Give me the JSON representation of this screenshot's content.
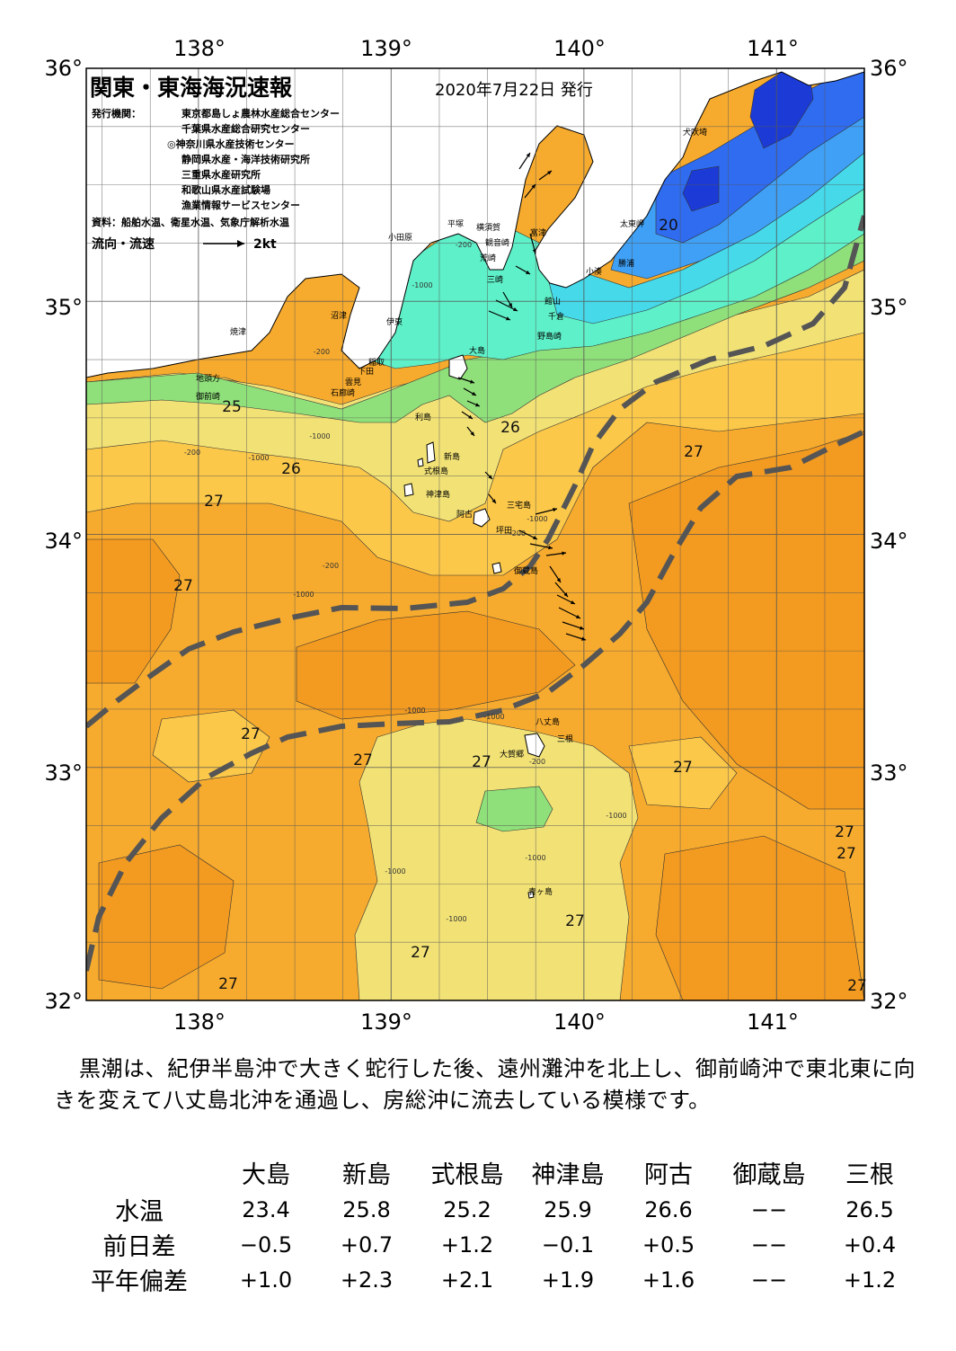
{
  "map": {
    "title": "関東・東海海況速報",
    "date": "2020年7月22日 発行",
    "publisher_label": "発行機関：",
    "publishers": [
      "東京都島しょ農林水産総合センター",
      "千葉県水産総合研究センター",
      "◎神奈川県水産技術センター",
      "静岡県水産・海洋技術研究所",
      "三重県水産研究所",
      "和歌山県水産試験場",
      "漁業情報サービスセンター"
    ],
    "source": "資料：船舶水温、衛星水温、気象庁解析水温",
    "flow_label": "流向・流速",
    "flow_scale": "2kt",
    "lon_labels": [
      "138°",
      "139°",
      "140°",
      "141°"
    ],
    "lat_labels": [
      "36°",
      "35°",
      "34°",
      "33°",
      "32°"
    ],
    "place_names": [
      "犬吠埼",
      "太東岬",
      "勝浦",
      "小湊",
      "館山",
      "千倉",
      "野島崎",
      "富津",
      "横須賀",
      "観音崎",
      "荒崎",
      "三崎",
      "平塚",
      "小田原",
      "沼津",
      "伊東",
      "稲取",
      "下田",
      "雲見",
      "石廊崎",
      "焼津",
      "地頭方",
      "御前崎",
      "大島",
      "利島",
      "新島",
      "式根島",
      "神津島",
      "三宅島",
      "阿古",
      "坪田",
      "御蔵島",
      "八丈島",
      "三根",
      "大賀郷",
      "青ヶ島"
    ],
    "isotherm_labels": [
      "20",
      "25",
      "26",
      "26",
      "27",
      "27",
      "27",
      "27",
      "27",
      "27",
      "27",
      "27",
      "27",
      "27",
      "27",
      "27",
      "27"
    ],
    "depth_labels": [
      "-200",
      "-1000",
      "-200",
      "-1000",
      "-200",
      "-1000",
      "-200",
      "-1000",
      "-200",
      "-1000",
      "-1000",
      "-200",
      "-1000",
      "-1000",
      "-1000",
      "-1000",
      "-1000"
    ],
    "colors": {
      "land": "#ffffff",
      "sst_19": "#1c3bd6",
      "sst_20": "#2f6cf0",
      "sst_21": "#3fa0f5",
      "sst_22": "#45d9ea",
      "sst_23": "#5ef0c8",
      "sst_24": "#8fe07a",
      "sst_25": "#f2e276",
      "sst_26": "#fbc84a",
      "sst_27": "#f7ab2e",
      "sst_28": "#f39a20",
      "kuroshio_axis": "#555555"
    }
  },
  "summary": "黒潮は、紀伊半島沖で大きく蛇行した後、遠州灘沖を北上し、御前崎沖で東北東に向きを変えて八丈島北沖を通過し、房総沖に流去している模様です。",
  "table": {
    "headers": [
      "大島",
      "新島",
      "式根島",
      "神津島",
      "阿古",
      "御蔵島",
      "三根"
    ],
    "rows": [
      {
        "label": "水温",
        "values": [
          "23.4",
          "25.8",
          "25.2",
          "25.9",
          "26.6",
          "−−",
          "26.5"
        ]
      },
      {
        "label": "前日差",
        "values": [
          "−0.5",
          "+0.7",
          "+1.2",
          "−0.1",
          "+0.5",
          "−−",
          "+0.4"
        ]
      },
      {
        "label": "平年偏差",
        "values": [
          "+1.0",
          "+2.3",
          "+2.1",
          "+1.9",
          "+1.6",
          "−−",
          "+1.2"
        ]
      }
    ]
  }
}
